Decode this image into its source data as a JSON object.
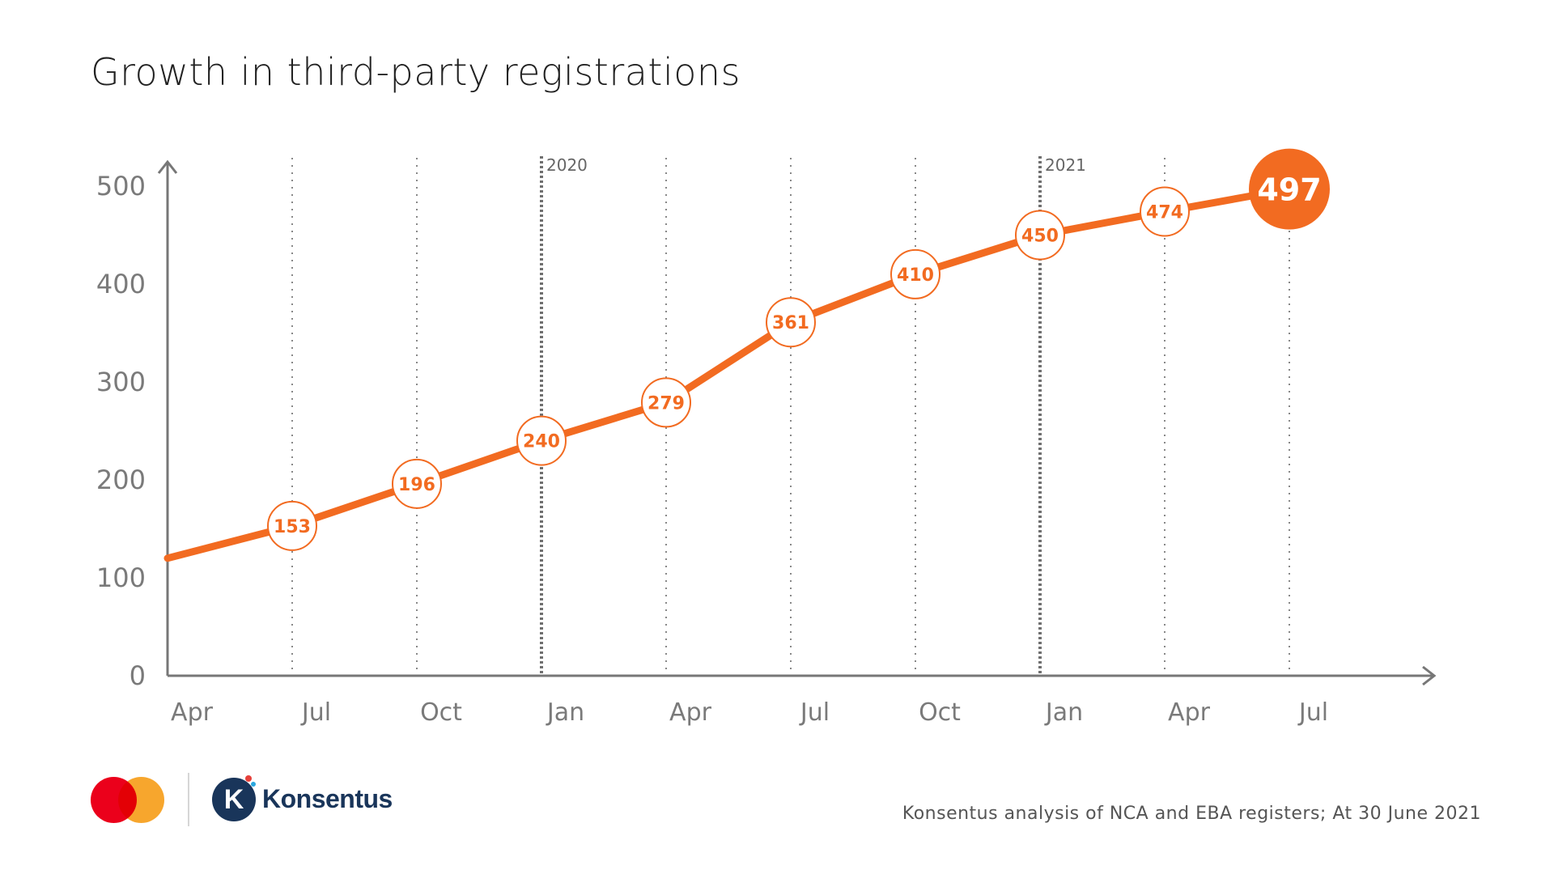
{
  "title": "Growth in third-party registrations",
  "source": "Konsentus analysis of NCA and EBA registers; At 30 June 2021",
  "logo": {
    "brand_name": "Konsentus",
    "k_letter": "K"
  },
  "colors": {
    "accent": "#f26b21",
    "axis": "#777777",
    "grid": "#888888",
    "text": "#7a7a7a"
  },
  "chart_data": {
    "type": "line",
    "title": "Growth in third-party registrations",
    "xlabel": "",
    "ylabel": "",
    "ylim": [
      0,
      500
    ],
    "yticks": [
      0,
      100,
      200,
      300,
      400,
      500
    ],
    "x": [
      "Apr",
      "Jul",
      "Oct",
      "Jan",
      "Apr",
      "Jul",
      "Oct",
      "Jan",
      "Apr",
      "Jul"
    ],
    "values": [
      120,
      153,
      196,
      240,
      279,
      361,
      410,
      450,
      474,
      497
    ],
    "point_labels": [
      "",
      "153",
      "196",
      "240",
      "279",
      "361",
      "410",
      "450",
      "474",
      "497"
    ],
    "highlight_last": true,
    "year_markers": [
      {
        "at_index": 3,
        "label": "2020"
      },
      {
        "at_index": 7,
        "label": "2021"
      }
    ],
    "grid": "vertical-dotted"
  }
}
